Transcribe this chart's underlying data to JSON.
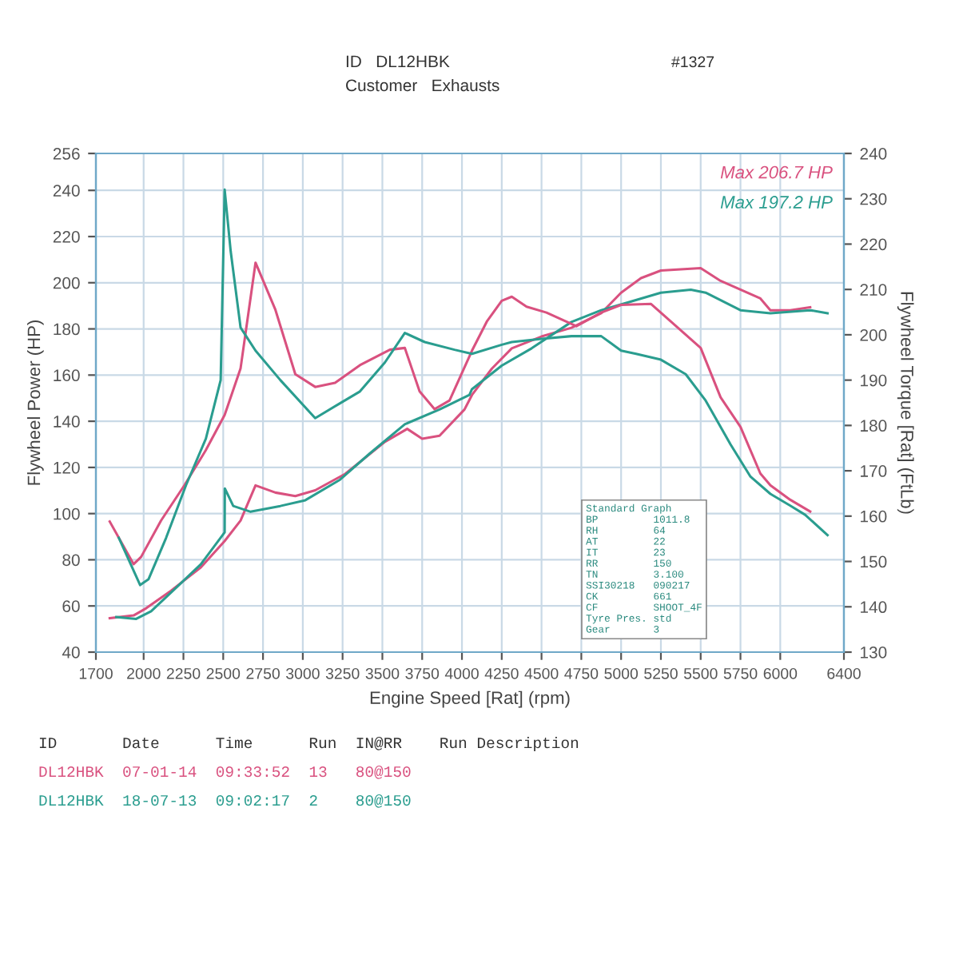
{
  "chart_data": {
    "type": "line",
    "xlabel": "Engine Speed [Rat] (rpm)",
    "ylabel": "Flywheel Power (HP)",
    "y2label": "Flywheel Torque [Rat] (FtLb)",
    "xlim": [
      1700,
      6400
    ],
    "xticks": [
      1700,
      2000,
      2250,
      2500,
      2750,
      3000,
      3250,
      3500,
      3750,
      4000,
      4250,
      4500,
      4750,
      5000,
      5250,
      5500,
      5750,
      6000,
      6400
    ],
    "ylim": [
      40,
      256
    ],
    "yticks": [
      40,
      60,
      80,
      100,
      120,
      140,
      160,
      180,
      200,
      220,
      240,
      256
    ],
    "y2lim": [
      130,
      240
    ],
    "y2ticks": [
      130,
      140,
      150,
      160,
      170,
      180,
      190,
      200,
      210,
      220,
      230,
      240
    ],
    "grid": true,
    "line_style": "solid",
    "marker": "none",
    "series": [
      {
        "color": "#d9517f",
        "x": [
          1787,
          1937,
          2016,
          2172,
          2359,
          2509,
          2609,
          2703,
          2828,
          2953,
          3078,
          3266,
          3516,
          3656,
          3750,
          3859,
          4016,
          4063,
          4188,
          4313,
          4500,
          4688,
          4875,
          5000,
          5125,
          5250,
          5500,
          5625,
          5750,
          5875,
          5938,
          6063,
          6188
        ],
        "values": [
          54.7,
          55.9,
          59.0,
          66.6,
          76.7,
          88.1,
          97.0,
          112.2,
          109.1,
          107.6,
          110.1,
          117.2,
          131.1,
          136.7,
          132.4,
          133.7,
          145.1,
          151.4,
          162.8,
          171.6,
          176.7,
          180.5,
          186.8,
          195.7,
          202.0,
          205.3,
          206.3,
          200.8,
          197.0,
          193.2,
          188.1,
          188.1,
          189.4
        ]
      },
      {
        "color": "#2a9d8f",
        "x": [
          1828,
          1953,
          2047,
          2203,
          2359,
          2509,
          2510,
          2563,
          2672,
          2859,
          3016,
          3234,
          3422,
          3641,
          3859,
          4047,
          4063,
          4250,
          4438,
          4688,
          4875,
          5063,
          5250,
          5438,
          5531,
          5750,
          5938,
          6188,
          6297
        ],
        "values": [
          55.2,
          54.4,
          57.7,
          67.8,
          78.0,
          91.9,
          110.9,
          103.3,
          100.8,
          103.3,
          105.8,
          114.7,
          126.1,
          138.7,
          145.1,
          151.4,
          153.9,
          164.1,
          171.6,
          183.0,
          188.1,
          191.9,
          195.7,
          197.0,
          195.7,
          188.1,
          186.8,
          188.1,
          186.8
        ]
      },
      {
        "color": "#d9517f",
        "axis": "y2",
        "x": [
          1787,
          1937,
          1984,
          2109,
          2256,
          2390,
          2509,
          2609,
          2703,
          2828,
          2953,
          3078,
          3203,
          3359,
          3547,
          3641,
          3734,
          3828,
          3922,
          4063,
          4156,
          4250,
          4313,
          4406,
          4531,
          4719,
          4875,
          5000,
          5188,
          5313,
          5500,
          5625,
          5750,
          5875,
          5938,
          6063,
          6188
        ],
        "values": [
          158.8,
          149.4,
          151.0,
          159.0,
          166.8,
          174.5,
          182.3,
          192.6,
          215.9,
          205.5,
          191.3,
          188.5,
          189.4,
          193.3,
          196.7,
          197.1,
          187.5,
          183.6,
          185.5,
          196.5,
          202.9,
          207.5,
          208.4,
          206.2,
          204.9,
          201.9,
          204.9,
          206.6,
          206.8,
          202.9,
          197.1,
          186.2,
          179.7,
          169.4,
          166.8,
          163.6,
          161.0
        ]
      },
      {
        "color": "#2a9d8f",
        "axis": "y2",
        "x": [
          1844,
          1978,
          2031,
          2141,
          2266,
          2391,
          2484,
          2509,
          2547,
          2609,
          2703,
          2859,
          3078,
          3234,
          3359,
          3516,
          3641,
          3766,
          3953,
          4063,
          4250,
          4313,
          4500,
          4688,
          4875,
          5000,
          5094,
          5250,
          5406,
          5531,
          5688,
          5813,
          5938,
          6063,
          6156,
          6297
        ],
        "values": [
          155.2,
          144.8,
          146.1,
          155.2,
          166.8,
          177.1,
          190.0,
          232.0,
          218.4,
          201.6,
          196.5,
          190.0,
          181.6,
          184.9,
          187.5,
          193.9,
          200.4,
          198.4,
          196.7,
          195.8,
          197.8,
          198.4,
          199.1,
          199.7,
          199.7,
          196.5,
          195.8,
          194.5,
          191.3,
          185.5,
          175.8,
          168.7,
          164.9,
          162.3,
          160.3,
          155.8
        ]
      }
    ],
    "annotations": [
      "ID   DL12HBK",
      "Customer   Exhausts",
      "#1327",
      "Max 206.7 HP",
      "Max 197.2 HP",
      "Standard Graph\nBP         1011.8\nRH         64\nAT         22\nIT         23\nRR         150\nTN         3.100\nSSI30218   090217\nCK         661\nCF         SHOOT_4F\nTyre Pres. std\nGear       3",
      "ID       Date      Time      Run  IN@RR    Run Description",
      "DL12HBK  07-01-14  09:33:52  13   80@150",
      "DL12HBK  18-07-13  09:02:17  2    80@150"
    ]
  }
}
